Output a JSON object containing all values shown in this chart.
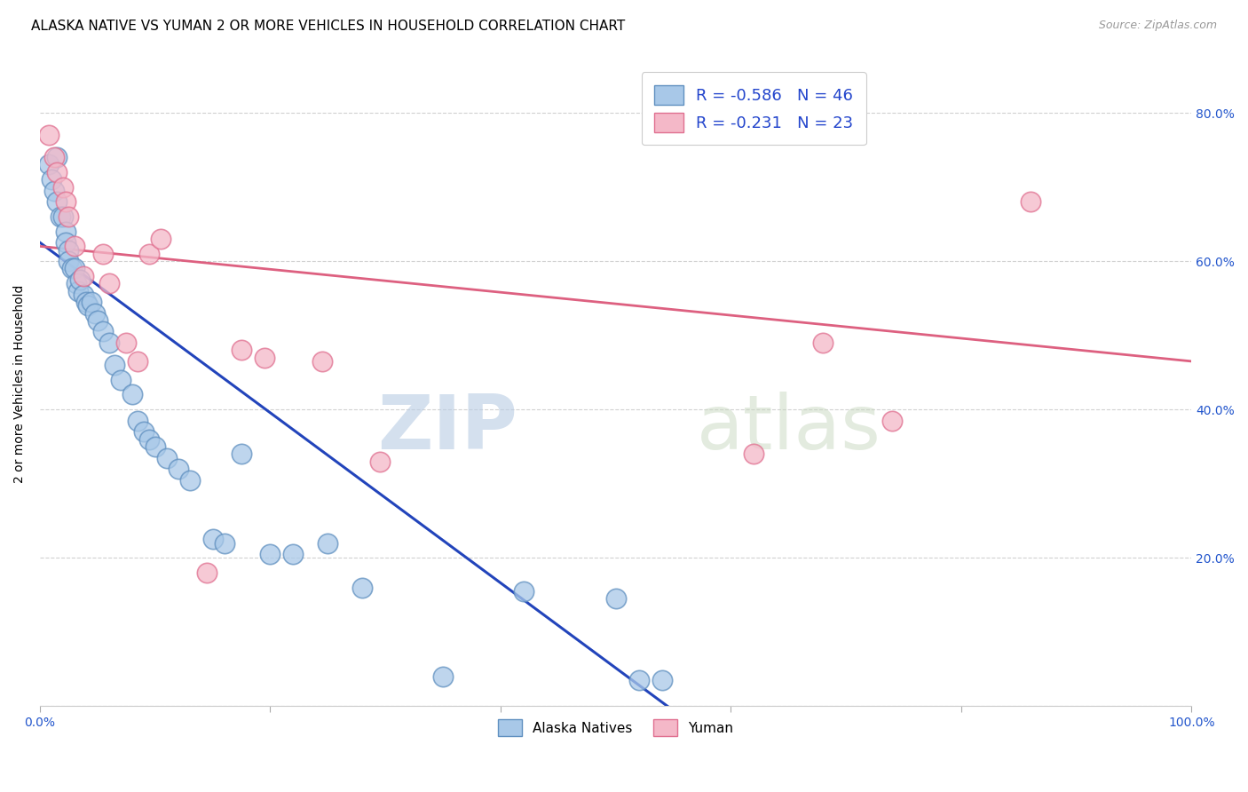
{
  "title": "ALASKA NATIVE VS YUMAN 2 OR MORE VEHICLES IN HOUSEHOLD CORRELATION CHART",
  "source": "Source: ZipAtlas.com",
  "ylabel": "2 or more Vehicles in Household",
  "xlim": [
    0.0,
    1.0
  ],
  "ylim": [
    0.0,
    0.87
  ],
  "yticks": [
    0.0,
    0.2,
    0.4,
    0.6,
    0.8
  ],
  "ytick_labels": [
    "",
    "20.0%",
    "40.0%",
    "60.0%",
    "80.0%"
  ],
  "xticks": [
    0.0,
    0.2,
    0.4,
    0.6,
    0.8,
    1.0
  ],
  "xtick_labels": [
    "0.0%",
    "",
    "",
    "",
    "",
    "100.0%"
  ],
  "legend_line1": "R = -0.586   N = 46",
  "legend_line2": "R = -0.231   N = 23",
  "legend_bottom_blue": "Alaska Natives",
  "legend_bottom_pink": "Yuman",
  "blue_color": "#a8c8e8",
  "pink_color": "#f4b8c8",
  "blue_edge_color": "#6090c0",
  "pink_edge_color": "#e07090",
  "blue_line_color": "#2244bb",
  "pink_line_color": "#dd6080",
  "watermark_zip": "ZIP",
  "watermark_atlas": "atlas",
  "title_fontsize": 11,
  "source_fontsize": 9,
  "blue_scatter_x": [
    0.008,
    0.01,
    0.012,
    0.015,
    0.015,
    0.018,
    0.02,
    0.022,
    0.022,
    0.025,
    0.025,
    0.028,
    0.03,
    0.032,
    0.033,
    0.035,
    0.038,
    0.04,
    0.042,
    0.045,
    0.048,
    0.05,
    0.055,
    0.06,
    0.065,
    0.07,
    0.08,
    0.085,
    0.09,
    0.095,
    0.1,
    0.11,
    0.12,
    0.13,
    0.15,
    0.16,
    0.175,
    0.2,
    0.22,
    0.25,
    0.28,
    0.35,
    0.42,
    0.5,
    0.52,
    0.54
  ],
  "blue_scatter_y": [
    0.73,
    0.71,
    0.695,
    0.74,
    0.68,
    0.66,
    0.66,
    0.64,
    0.625,
    0.615,
    0.6,
    0.59,
    0.59,
    0.57,
    0.56,
    0.575,
    0.555,
    0.545,
    0.54,
    0.545,
    0.53,
    0.52,
    0.505,
    0.49,
    0.46,
    0.44,
    0.42,
    0.385,
    0.37,
    0.36,
    0.35,
    0.335,
    0.32,
    0.305,
    0.225,
    0.22,
    0.34,
    0.205,
    0.205,
    0.22,
    0.16,
    0.04,
    0.155,
    0.145,
    0.035,
    0.035
  ],
  "pink_scatter_x": [
    0.008,
    0.012,
    0.015,
    0.02,
    0.022,
    0.025,
    0.03,
    0.038,
    0.055,
    0.06,
    0.075,
    0.085,
    0.095,
    0.105,
    0.145,
    0.175,
    0.195,
    0.245,
    0.295,
    0.62,
    0.68,
    0.74,
    0.86
  ],
  "pink_scatter_y": [
    0.77,
    0.74,
    0.72,
    0.7,
    0.68,
    0.66,
    0.62,
    0.58,
    0.61,
    0.57,
    0.49,
    0.465,
    0.61,
    0.63,
    0.18,
    0.48,
    0.47,
    0.465,
    0.33,
    0.34,
    0.49,
    0.385,
    0.68
  ],
  "blue_line_x": [
    0.0,
    0.545
  ],
  "blue_line_y": [
    0.625,
    0.0
  ],
  "pink_line_x": [
    0.0,
    1.0
  ],
  "pink_line_y": [
    0.62,
    0.465
  ]
}
